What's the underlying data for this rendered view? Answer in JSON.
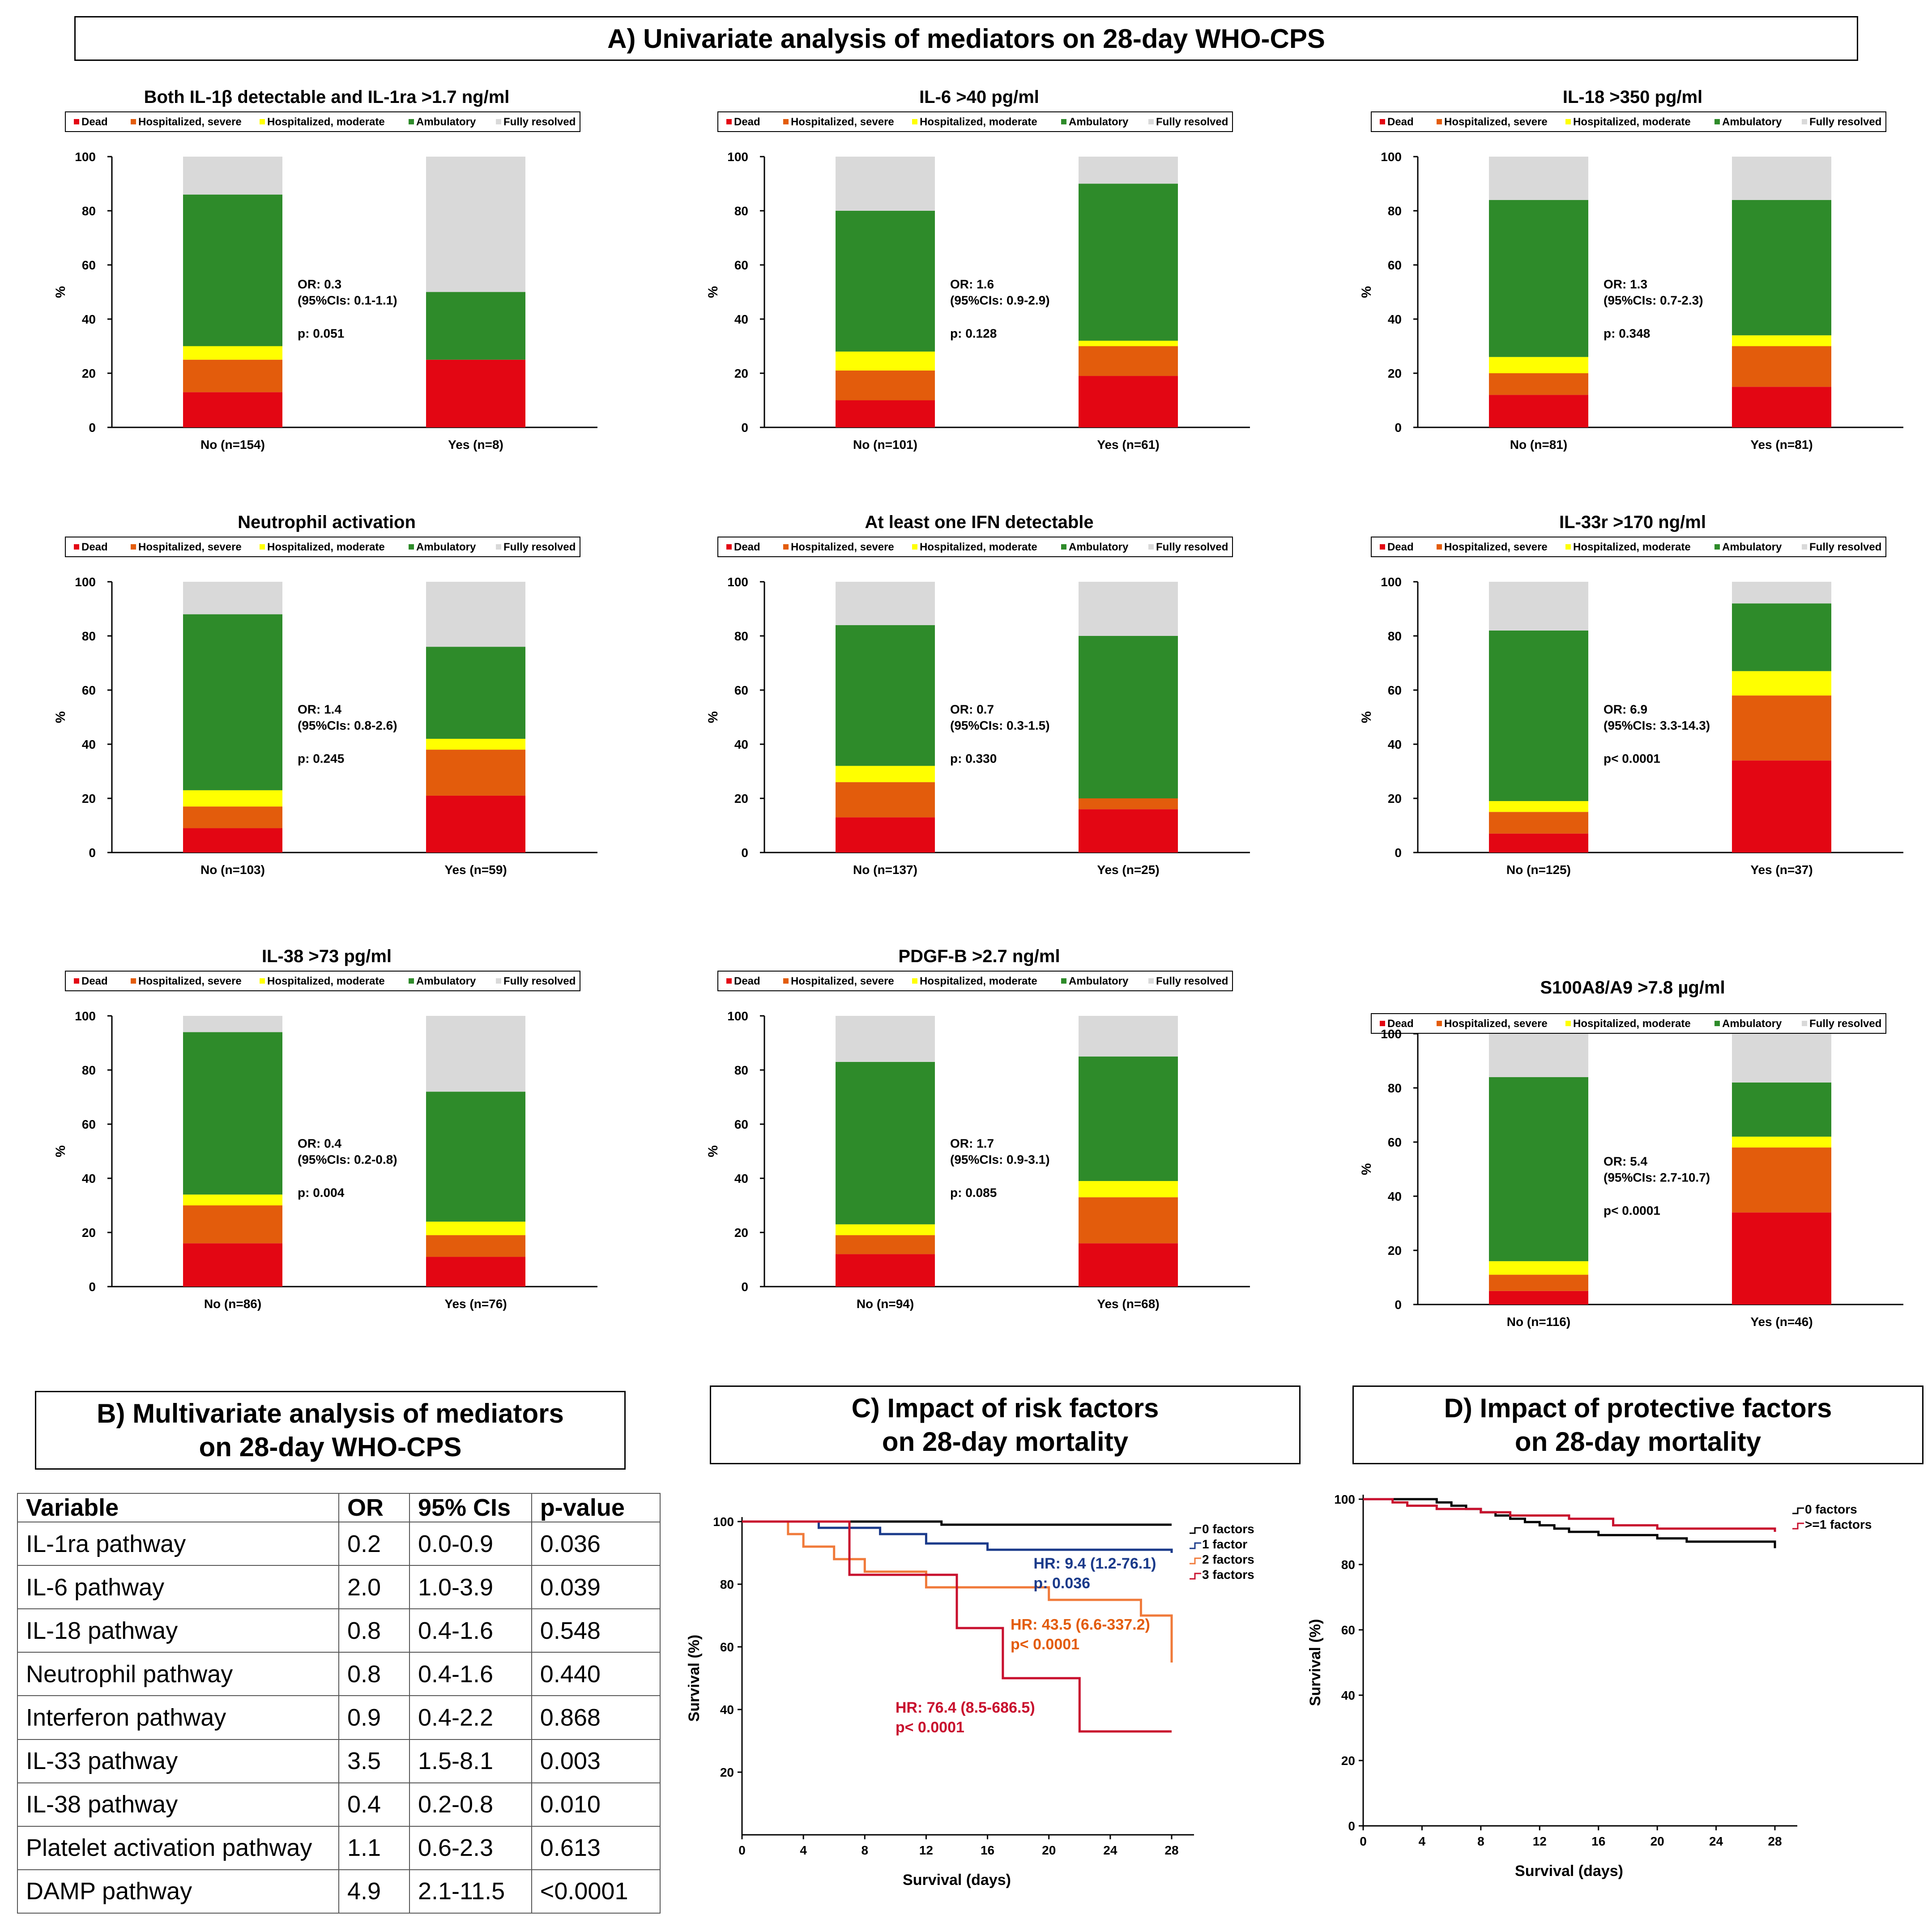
{
  "panels": {
    "a_title": "A) Univariate analysis of mediators on 28-day WHO-CPS",
    "b_title": [
      "B) Multivariate analysis of mediators",
      "on 28-day WHO-CPS"
    ],
    "c_title": [
      "C) Impact of risk factors",
      "on 28-day mortality"
    ],
    "d_title": [
      "D) Impact of protective factors",
      "on 28-day mortality"
    ]
  },
  "legend_colors": {
    "Dead": "#e30613",
    "Hospitalized, severe": "#e35c0c",
    "Hospitalized, moderate": "#ffff00",
    "Ambulatory": "#2e8b2a",
    "Fully resolved": "#d9d9d9"
  },
  "multivariate_table": {
    "headers": [
      "Variable",
      "OR",
      "95%  CIs",
      "p-value"
    ],
    "rows": [
      [
        "IL-1ra pathway",
        "0.2",
        "0.0-0.9",
        "0.036"
      ],
      [
        "IL-6 pathway",
        "2.0",
        "1.0-3.9",
        "0.039"
      ],
      [
        "IL-18 pathway",
        "0.8",
        "0.4-1.6",
        "0.548"
      ],
      [
        "Neutrophil pathway",
        "0.8",
        "0.4-1.6",
        "0.440"
      ],
      [
        "Interferon pathway",
        "0.9",
        "0.4-2.2",
        "0.868"
      ],
      [
        "IL-33 pathway",
        "3.5",
        "1.5-8.1",
        "0.003"
      ],
      [
        "IL-38 pathway",
        "0.4",
        "0.2-0.8",
        "0.010"
      ],
      [
        "Platelet activation pathway",
        "1.1",
        "0.6-2.3",
        "0.613"
      ],
      [
        "DAMP pathway",
        "4.9",
        "2.1-11.5",
        "<0.0001"
      ]
    ]
  },
  "chart_data": [
    {
      "type": "bar",
      "stacked": true,
      "title": "Both IL-1β detectable and IL-1ra >1.7 ng/ml",
      "ylabel": "%",
      "ylim": [
        0,
        100
      ],
      "yticks": [
        0,
        20,
        40,
        60,
        80,
        100
      ],
      "categories": [
        "No (n=154)",
        "Yes (n=8)"
      ],
      "series": [
        {
          "name": "Dead",
          "values": [
            13,
            25
          ]
        },
        {
          "name": "Hospitalized, severe",
          "values": [
            12,
            0
          ]
        },
        {
          "name": "Hospitalized, moderate",
          "values": [
            5,
            0
          ]
        },
        {
          "name": "Ambulatory",
          "values": [
            56,
            25
          ]
        },
        {
          "name": "Fully resolved",
          "values": [
            14,
            50
          ]
        }
      ],
      "annotation": [
        "OR: 0.3",
        "(95%CIs: 0.1-1.1)",
        "p: 0.051"
      ]
    },
    {
      "type": "bar",
      "stacked": true,
      "title": "IL-6 >40 pg/ml",
      "ylabel": "%",
      "ylim": [
        0,
        100
      ],
      "yticks": [
        0,
        20,
        40,
        60,
        80,
        100
      ],
      "categories": [
        "No (n=101)",
        "Yes (n=61)"
      ],
      "series": [
        {
          "name": "Dead",
          "values": [
            10,
            19
          ]
        },
        {
          "name": "Hospitalized, severe",
          "values": [
            11,
            11
          ]
        },
        {
          "name": "Hospitalized, moderate",
          "values": [
            7,
            2
          ]
        },
        {
          "name": "Ambulatory",
          "values": [
            52,
            58
          ]
        },
        {
          "name": "Fully resolved",
          "values": [
            20,
            10
          ]
        }
      ],
      "annotation": [
        "OR: 1.6",
        "(95%CIs: 0.9-2.9)",
        "p: 0.128"
      ]
    },
    {
      "type": "bar",
      "stacked": true,
      "title": "IL-18 >350 pg/ml",
      "ylabel": "%",
      "ylim": [
        0,
        100
      ],
      "yticks": [
        0,
        20,
        40,
        60,
        80,
        100
      ],
      "categories": [
        "No (n=81)",
        "Yes (n=81)"
      ],
      "series": [
        {
          "name": "Dead",
          "values": [
            12,
            15
          ]
        },
        {
          "name": "Hospitalized, severe",
          "values": [
            8,
            15
          ]
        },
        {
          "name": "Hospitalized, moderate",
          "values": [
            6,
            4
          ]
        },
        {
          "name": "Ambulatory",
          "values": [
            58,
            50
          ]
        },
        {
          "name": "Fully resolved",
          "values": [
            16,
            16
          ]
        }
      ],
      "annotation": [
        "OR: 1.3",
        "(95%CIs: 0.7-2.3)",
        "p: 0.348"
      ]
    },
    {
      "type": "bar",
      "stacked": true,
      "title": "Neutrophil activation",
      "ylabel": "%",
      "ylim": [
        0,
        100
      ],
      "yticks": [
        0,
        20,
        40,
        60,
        80,
        100
      ],
      "categories": [
        "No (n=103)",
        "Yes (n=59)"
      ],
      "series": [
        {
          "name": "Dead",
          "values": [
            9,
            21
          ]
        },
        {
          "name": "Hospitalized, severe",
          "values": [
            8,
            17
          ]
        },
        {
          "name": "Hospitalized, moderate",
          "values": [
            6,
            4
          ]
        },
        {
          "name": "Ambulatory",
          "values": [
            65,
            34
          ]
        },
        {
          "name": "Fully resolved",
          "values": [
            12,
            24
          ]
        }
      ],
      "annotation": [
        "OR: 1.4",
        "(95%CIs: 0.8-2.6)",
        "p: 0.245"
      ]
    },
    {
      "type": "bar",
      "stacked": true,
      "title": "At least one IFN detectable",
      "ylabel": "%",
      "ylim": [
        0,
        100
      ],
      "yticks": [
        0,
        20,
        40,
        60,
        80,
        100
      ],
      "categories": [
        "No (n=137)",
        "Yes (n=25)"
      ],
      "series": [
        {
          "name": "Dead",
          "values": [
            13,
            16
          ]
        },
        {
          "name": "Hospitalized, severe",
          "values": [
            13,
            4
          ]
        },
        {
          "name": "Hospitalized, moderate",
          "values": [
            6,
            0
          ]
        },
        {
          "name": "Ambulatory",
          "values": [
            52,
            60
          ]
        },
        {
          "name": "Fully resolved",
          "values": [
            16,
            20
          ]
        }
      ],
      "annotation": [
        "OR: 0.7",
        "(95%CIs: 0.3-1.5)",
        "p: 0.330"
      ]
    },
    {
      "type": "bar",
      "stacked": true,
      "title": "IL-33r >170 ng/ml",
      "ylabel": "%",
      "ylim": [
        0,
        100
      ],
      "yticks": [
        0,
        20,
        40,
        60,
        80,
        100
      ],
      "categories": [
        "No (n=125)",
        "Yes (n=37)"
      ],
      "series": [
        {
          "name": "Dead",
          "values": [
            7,
            34
          ]
        },
        {
          "name": "Hospitalized, severe",
          "values": [
            8,
            24
          ]
        },
        {
          "name": "Hospitalized, moderate",
          "values": [
            4,
            9
          ]
        },
        {
          "name": "Ambulatory",
          "values": [
            63,
            25
          ]
        },
        {
          "name": "Fully resolved",
          "values": [
            18,
            8
          ]
        }
      ],
      "annotation": [
        "OR: 6.9",
        "(95%CIs: 3.3-14.3)",
        "p< 0.0001"
      ]
    },
    {
      "type": "bar",
      "stacked": true,
      "title": "IL-38 >73 pg/ml",
      "ylabel": "%",
      "ylim": [
        0,
        100
      ],
      "yticks": [
        0,
        20,
        40,
        60,
        80,
        100
      ],
      "categories": [
        "No (n=86)",
        "Yes (n=76)"
      ],
      "series": [
        {
          "name": "Dead",
          "values": [
            16,
            11
          ]
        },
        {
          "name": "Hospitalized, severe",
          "values": [
            14,
            8
          ]
        },
        {
          "name": "Hospitalized, moderate",
          "values": [
            4,
            5
          ]
        },
        {
          "name": "Ambulatory",
          "values": [
            60,
            48
          ]
        },
        {
          "name": "Fully resolved",
          "values": [
            6,
            28
          ]
        }
      ],
      "annotation": [
        "OR: 0.4",
        "(95%CIs: 0.2-0.8)",
        "p: 0.004"
      ]
    },
    {
      "type": "bar",
      "stacked": true,
      "title": "PDGF-B >2.7 ng/ml",
      "ylabel": "%",
      "ylim": [
        0,
        100
      ],
      "yticks": [
        0,
        20,
        40,
        60,
        80,
        100
      ],
      "categories": [
        "No (n=94)",
        "Yes (n=68)"
      ],
      "series": [
        {
          "name": "Dead",
          "values": [
            12,
            16
          ]
        },
        {
          "name": "Hospitalized, severe",
          "values": [
            7,
            17
          ]
        },
        {
          "name": "Hospitalized, moderate",
          "values": [
            4,
            6
          ]
        },
        {
          "name": "Ambulatory",
          "values": [
            60,
            46
          ]
        },
        {
          "name": "Fully resolved",
          "values": [
            17,
            15
          ]
        }
      ],
      "annotation": [
        "OR: 1.7",
        "(95%CIs: 0.9-3.1)",
        "p: 0.085"
      ]
    },
    {
      "type": "bar",
      "stacked": true,
      "title": "S100A8/A9  >7.8 µg/ml",
      "ylabel": "%",
      "ylim": [
        0,
        100
      ],
      "yticks": [
        0,
        20,
        40,
        60,
        80,
        100
      ],
      "categories": [
        "No (n=116)",
        "Yes (n=46)"
      ],
      "series": [
        {
          "name": "Dead",
          "values": [
            5,
            34
          ]
        },
        {
          "name": "Hospitalized, severe",
          "values": [
            6,
            24
          ]
        },
        {
          "name": "Hospitalized, moderate",
          "values": [
            5,
            4
          ]
        },
        {
          "name": "Ambulatory",
          "values": [
            68,
            20
          ]
        },
        {
          "name": "Fully resolved",
          "values": [
            16,
            18
          ]
        }
      ],
      "annotation": [
        "OR: 5.4",
        "(95%CIs: 2.7-10.7)",
        "p< 0.0001"
      ]
    },
    {
      "type": "line",
      "step": true,
      "xlabel": "Survival (days)",
      "ylabel": "Survival (%)",
      "xlim": [
        0,
        28
      ],
      "ylim": [
        0,
        100
      ],
      "xticks": [
        0,
        4,
        8,
        12,
        16,
        20,
        24,
        28
      ],
      "yticks": [
        20,
        40,
        60,
        80,
        100
      ],
      "series": [
        {
          "name": "0 factors",
          "color": "#000000",
          "x": [
            0,
            13,
            28
          ],
          "y": [
            100,
            99,
            99
          ]
        },
        {
          "name": "1 factor",
          "color": "#1a3a8a",
          "x": [
            0,
            5,
            9,
            12,
            16,
            28
          ],
          "y": [
            100,
            98,
            96,
            93,
            91,
            90
          ]
        },
        {
          "name": "2 factors",
          "color": "#f07a3a",
          "x": [
            0,
            3,
            4,
            6,
            8,
            12,
            20,
            26,
            28
          ],
          "y": [
            100,
            96,
            92,
            88,
            84,
            79,
            75,
            70,
            55
          ]
        },
        {
          "name": "3 factors",
          "color": "#c8102e",
          "x": [
            0,
            7,
            14,
            17,
            22,
            28
          ],
          "y": [
            100,
            83,
            66,
            50,
            33,
            33
          ]
        }
      ],
      "legend": [
        "0 factors",
        "1 factor",
        "2 factors",
        "3 factors"
      ],
      "annotations": [
        {
          "series": "1 factor",
          "day": 19,
          "value": 85,
          "color": "#1a3a8a",
          "lines": [
            "HR: 9.4 (1.2-76.1)",
            "p: 0.036"
          ]
        },
        {
          "series": "2 factors",
          "day": 17.5,
          "value": 65.5,
          "color": "#e35c0c",
          "lines": [
            "HR: 43.5 (6.6-337.2)",
            "p< 0.0001"
          ]
        },
        {
          "series": "3 factors",
          "day": 10,
          "value": 39,
          "color": "#c8102e",
          "lines": [
            "HR: 76.4 (8.5-686.5)",
            "p< 0.0001"
          ]
        }
      ]
    },
    {
      "type": "line",
      "step": true,
      "xlabel": "Survival (days)",
      "ylabel": "Survival (%)",
      "xlim": [
        0,
        28
      ],
      "ylim": [
        0,
        100
      ],
      "xticks": [
        0,
        4,
        8,
        12,
        16,
        20,
        24,
        28
      ],
      "yticks": [
        0,
        20,
        40,
        60,
        80,
        100
      ],
      "series": [
        {
          "name": "0 factors",
          "color": "#000000",
          "x": [
            0,
            5,
            6,
            7,
            8,
            9,
            10,
            11,
            12,
            13,
            14,
            16,
            20,
            22,
            28
          ],
          "y": [
            100,
            99,
            98,
            97,
            96,
            95,
            94,
            93,
            92,
            91,
            90,
            89,
            88,
            87,
            85
          ]
        },
        {
          "name": ">=1 factors",
          "color": "#c8102e",
          "x": [
            0,
            2,
            3,
            5,
            8,
            10,
            14,
            17,
            20,
            28
          ],
          "y": [
            100,
            99,
            98,
            97,
            96,
            95,
            94,
            92,
            91,
            90
          ]
        }
      ],
      "legend": [
        "0 factors",
        ">=1 factors"
      ]
    }
  ]
}
